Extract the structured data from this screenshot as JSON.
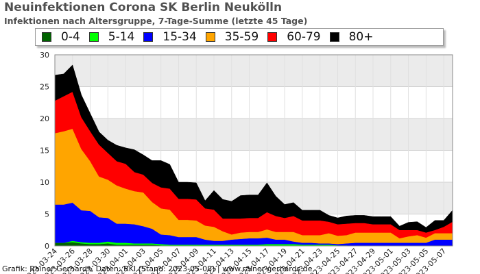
{
  "title": "Neuinfektionen Corona SK Berlin Neukölln",
  "subtitle": "Infektionen nach Altersgruppe, 7-Tage-Summe (letzte 45 Tage)",
  "footer": "Grafik: Rainer Gerhards, Daten: RKI (Stand: 2023-05-08) | www.rainer-gerhards.de",
  "chart_data": {
    "type": "area",
    "stacked": true,
    "ylim": [
      0,
      30
    ],
    "yticks": [
      0,
      5,
      10,
      15,
      20,
      25,
      30
    ],
    "grid": true,
    "legend_position": "top",
    "x_tick_labels": [
      "2023-03-24",
      "2023-03-26",
      "2023-03-28",
      "2023-03-30",
      "2023-04-01",
      "2023-04-03",
      "2023-04-05",
      "2023-04-07",
      "2023-04-09",
      "2023-04-11",
      "2023-04-13",
      "2023-04-15",
      "2023-04-17",
      "2023-04-19",
      "2023-04-21",
      "2023-04-23",
      "2023-04-25",
      "2023-04-27",
      "2023-04-29",
      "2023-05-01",
      "2023-05-03",
      "2023-05-05",
      "2023-05-07"
    ],
    "x": [
      "2023-03-24",
      "2023-03-25",
      "2023-03-26",
      "2023-03-27",
      "2023-03-28",
      "2023-03-29",
      "2023-03-30",
      "2023-03-31",
      "2023-04-01",
      "2023-04-02",
      "2023-04-03",
      "2023-04-04",
      "2023-04-05",
      "2023-04-06",
      "2023-04-07",
      "2023-04-08",
      "2023-04-09",
      "2023-04-10",
      "2023-04-11",
      "2023-04-12",
      "2023-04-13",
      "2023-04-14",
      "2023-04-15",
      "2023-04-16",
      "2023-04-17",
      "2023-04-18",
      "2023-04-19",
      "2023-04-20",
      "2023-04-21",
      "2023-04-22",
      "2023-04-23",
      "2023-04-24",
      "2023-04-25",
      "2023-04-26",
      "2023-04-27",
      "2023-04-28",
      "2023-04-29",
      "2023-04-30",
      "2023-05-01",
      "2023-05-02",
      "2023-05-03",
      "2023-05-04",
      "2023-05-05",
      "2023-05-06",
      "2023-05-07",
      "2023-05-08"
    ],
    "series": [
      {
        "name": "0-4",
        "color": "#006400",
        "values": [
          0.5,
          0.5,
          0.6,
          0.4,
          0.3,
          0.3,
          0.4,
          0.2,
          0.2,
          0.2,
          0.2,
          0.2,
          0.1,
          0,
          0,
          0,
          0,
          0,
          0,
          0,
          0,
          0,
          0,
          0,
          0,
          0,
          0,
          0,
          0,
          0,
          0,
          0,
          0,
          0,
          0,
          0,
          0,
          0,
          0,
          0,
          0,
          0,
          0,
          0,
          0,
          0
        ]
      },
      {
        "name": "5-14",
        "color": "#00ff00",
        "values": [
          0,
          0,
          0.2,
          0.2,
          0.2,
          0.2,
          0.3,
          0.3,
          0.3,
          0.2,
          0.2,
          0.2,
          0.2,
          0.2,
          0.2,
          0.2,
          0.2,
          0.2,
          0.2,
          0.2,
          0.2,
          0.2,
          0.2,
          0.2,
          0.3,
          0.3,
          0.3,
          0.3,
          0.2,
          0.2,
          0.2,
          0.2,
          0.1,
          0.1,
          0,
          0,
          0,
          0,
          0,
          0,
          0,
          0,
          0,
          0,
          0,
          0
        ]
      },
      {
        "name": "15-34",
        "color": "#0000ff",
        "values": [
          6.0,
          6.0,
          6.0,
          5.0,
          5.0,
          4.0,
          3.7,
          3.0,
          3.0,
          3.0,
          2.7,
          2.3,
          1.5,
          1.5,
          1.2,
          1.2,
          1.2,
          0.8,
          0.6,
          0.6,
          0.8,
          0.9,
          1.0,
          1.0,
          1.0,
          0.7,
          0.7,
          0.4,
          0.3,
          0.3,
          0.2,
          0.2,
          0.2,
          0.3,
          0.5,
          0.5,
          0.5,
          0.5,
          0.5,
          0.5,
          0.5,
          0.5,
          0.5,
          1.0,
          1.0,
          1.0
        ]
      },
      {
        "name": "35-59",
        "color": "#ffa500",
        "values": [
          11.2,
          11.5,
          11.6,
          9.6,
          7.8,
          6.4,
          6.0,
          6.0,
          5.5,
          5.2,
          5.3,
          4.2,
          4.1,
          4.0,
          2.7,
          2.7,
          2.6,
          2.2,
          2.2,
          1.5,
          0.8,
          1.0,
          1.0,
          1.0,
          1.3,
          1.2,
          1.2,
          1.5,
          1.2,
          1.2,
          1.3,
          1.6,
          1.3,
          1.3,
          1.6,
          1.6,
          1.6,
          1.6,
          1.6,
          0.7,
          1.0,
          1.2,
          0.8,
          1.0,
          1.0,
          1.0
        ]
      },
      {
        "name": "60-79",
        "color": "#ff0000",
        "values": [
          5.1,
          5.5,
          5.8,
          5.0,
          4.7,
          5.0,
          4.2,
          3.8,
          3.9,
          3.0,
          2.8,
          3.0,
          3.3,
          3.3,
          3.3,
          3.3,
          3.3,
          2.7,
          2.7,
          2.0,
          2.5,
          2.2,
          2.2,
          2.2,
          2.7,
          2.5,
          2.2,
          2.5,
          2.3,
          2.3,
          2.3,
          1.8,
          1.8,
          1.8,
          1.5,
          1.5,
          1.3,
          1.3,
          1.3,
          1.3,
          1.0,
          0.8,
          0.8,
          0.5,
          1.0,
          1.8
        ]
      },
      {
        "name": "80+",
        "color": "#000000",
        "values": [
          4.0,
          3.5,
          4.2,
          3.5,
          2.8,
          2.0,
          2.0,
          2.5,
          2.5,
          3.5,
          3.1,
          3.5,
          4.2,
          3.8,
          2.6,
          2.6,
          2.6,
          1.2,
          3.0,
          3.0,
          2.7,
          3.6,
          3.6,
          3.6,
          4.6,
          3.1,
          2.1,
          2.1,
          1.6,
          1.6,
          1.6,
          1.0,
          1.0,
          1.2,
          1.2,
          1.2,
          1.2,
          1.2,
          1.2,
          0.6,
          1.2,
          1.3,
          0.8,
          1.5,
          1.0,
          1.8
        ]
      }
    ]
  }
}
